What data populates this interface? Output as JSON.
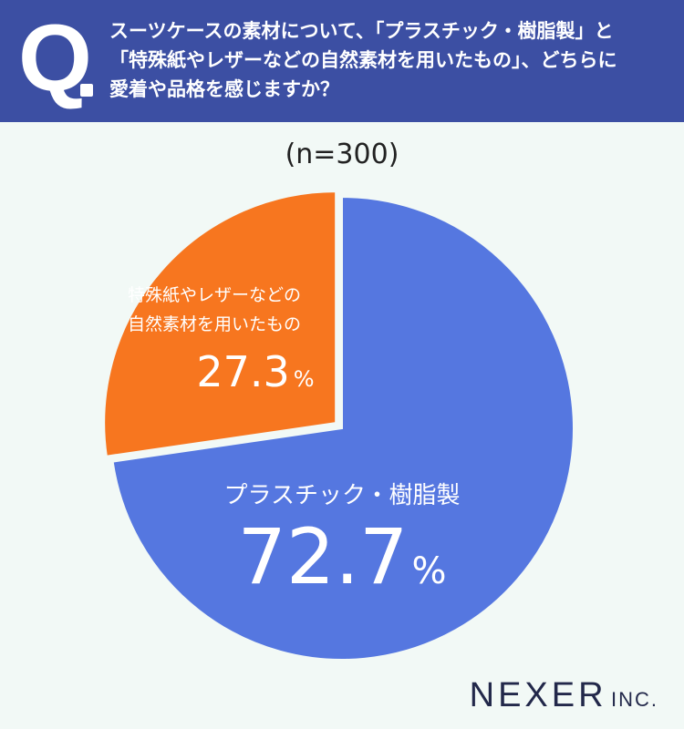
{
  "header": {
    "q_mark": "Q",
    "question": "スーツケースの素材について、「プラスチック・樹脂製」と\n「特殊紙やレザーなどの自然素材を用いたもの」、どちらに\n愛着や品格を感じますか？"
  },
  "sample_size": "(n=300)",
  "brand": {
    "name": "NEXER",
    "suffix": "INC."
  },
  "colors": {
    "header_bg": "#3c4fa3",
    "plastic": "#5577e0",
    "natural": "#f7761f",
    "background": "#f2f9f6"
  },
  "chart_data": {
    "type": "pie",
    "title": "",
    "slices": [
      {
        "label": "プラスチック・樹脂製",
        "value": 72.7,
        "display": "72.7",
        "unit": "%",
        "color": "#5577e0"
      },
      {
        "label": "特殊紙やレザーなどの\n自然素材を用いたもの",
        "value": 27.3,
        "display": "27.3",
        "unit": "%",
        "color": "#f7761f"
      }
    ]
  }
}
